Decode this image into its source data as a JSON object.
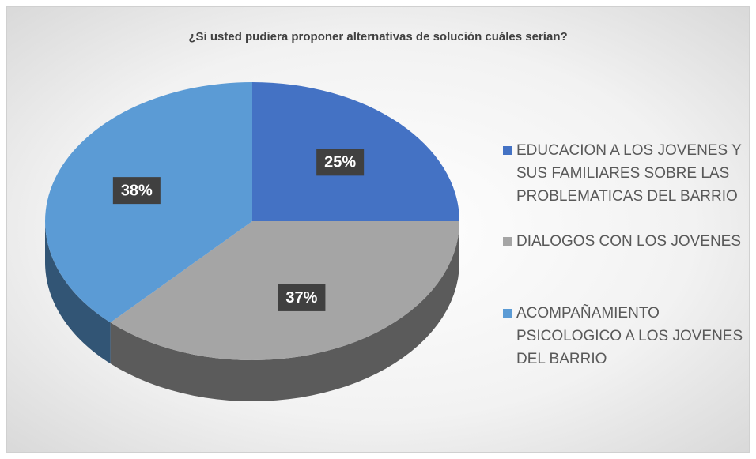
{
  "chart_data": {
    "type": "pie",
    "title": "¿Si usted pudiera proponer alternativas de solución cuáles serían?",
    "categories": [
      "EDUCACION A LOS JOVENES Y SUS FAMILIARES SOBRE LAS PROBLEMATICAS DEL BARRIO",
      "DIALOGOS CON LOS JOVENES",
      "ACOMPAÑAMIENTO PSICOLOGICO A LOS JOVENES DEL BARRIO"
    ],
    "values": [
      25,
      37,
      38
    ],
    "value_labels": [
      "25%",
      "37%",
      "38%"
    ],
    "colors": [
      "#4472c4",
      "#a5a5a5",
      "#5b9bd5"
    ],
    "legend": "right"
  }
}
